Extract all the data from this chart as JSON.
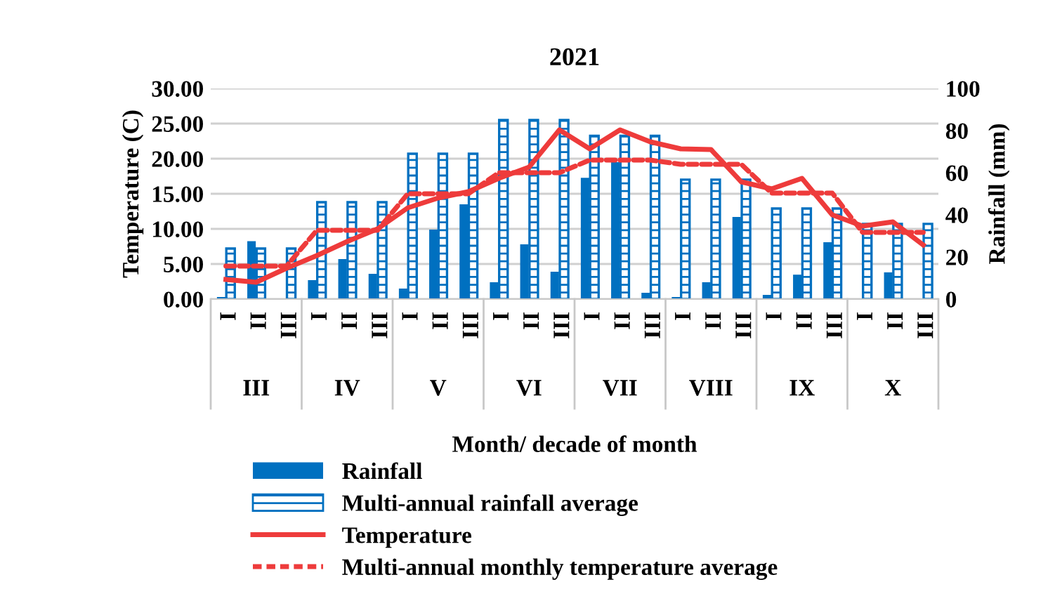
{
  "chart_data": {
    "type": "bar",
    "title": "2021",
    "xlabel": "Month/ decade of month",
    "ylabel": "Temperature (C)",
    "y2label": "Rainfall (mm)",
    "categories": [
      "I",
      "II",
      "III",
      "I",
      "II",
      "III",
      "I",
      "II",
      "III",
      "I",
      "II",
      "III",
      "I",
      "II",
      "III",
      "I",
      "II",
      "III",
      "I",
      "II",
      "III",
      "I",
      "II",
      "III"
    ],
    "annotations": [
      "III",
      "IV",
      "V",
      "VI",
      "VII",
      "VIII",
      "IX",
      "X"
    ],
    "series": [
      {
        "name": "Rainfall",
        "axis": "y2",
        "color": "#0070c0",
        "values": [
          1,
          27.5,
          0,
          9,
          19,
          12,
          5,
          33,
          45,
          8,
          26,
          13,
          57.6,
          65,
          3,
          1,
          8,
          39,
          2,
          11.6,
          27,
          0,
          12.7,
          0
        ]
      },
      {
        "name": "Multi-annual rainfall average",
        "axis": "y2",
        "color": "#0070c0",
        "values": [
          24,
          24,
          24,
          46,
          46,
          46,
          69,
          69,
          69,
          85,
          85,
          85,
          77.5,
          77.5,
          77.5,
          56.7,
          56.7,
          56.7,
          43,
          43,
          43,
          35.7,
          35.7,
          35.7
        ]
      },
      {
        "name": "Temperature",
        "type": "line",
        "axis": "y",
        "color": "#ee3b3b",
        "line_style": "solid",
        "values": [
          2.8,
          2.4,
          4.4,
          6.2,
          8.2,
          10,
          13,
          14.4,
          15.3,
          17.2,
          18.8,
          24.1,
          21.4,
          24.1,
          22.4,
          21.4,
          21.3,
          16.7,
          15.7,
          17.2,
          12,
          10.4,
          11,
          7.7
        ]
      },
      {
        "name": "Multi-annual monthly temperature average",
        "type": "line",
        "axis": "y",
        "color": "#ee3b3b",
        "line_style": "dashed",
        "values": [
          4.7,
          4.7,
          4.7,
          9.8,
          9.8,
          9.8,
          15,
          15,
          15,
          18,
          18,
          18,
          19.8,
          19.8,
          19.8,
          19.2,
          19.2,
          19.2,
          15.1,
          15.1,
          15.1,
          9.5,
          9.5,
          9.5
        ]
      }
    ],
    "ylim": [
      0,
      30
    ],
    "yticks": [
      {
        "value": 0,
        "label": "0.00"
      },
      {
        "value": 5,
        "label": "5.00"
      },
      {
        "value": 10,
        "label": "10.00"
      },
      {
        "value": 15,
        "label": "15.00"
      },
      {
        "value": 20,
        "label": "20.00"
      },
      {
        "value": 25,
        "label": "25.00"
      },
      {
        "value": 30,
        "label": "30.00"
      }
    ],
    "y2lim": [
      0,
      100
    ],
    "y2ticks": [
      0,
      20,
      40,
      60,
      80,
      100
    ],
    "grid": "y",
    "legend": "bottom",
    "marker": "none"
  }
}
